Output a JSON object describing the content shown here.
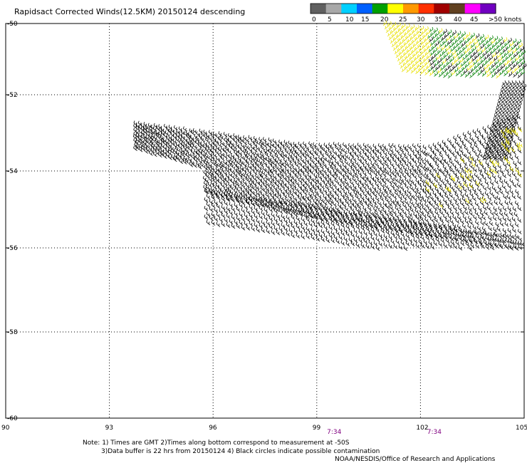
{
  "title": "Rapidsact Corrected Winds(12.5KM) 20150124 descending",
  "legend": {
    "labels": [
      "0",
      "5",
      "10",
      "15",
      "20",
      "25",
      "30",
      "35",
      "40",
      "45",
      ">50 knots"
    ],
    "colors": [
      "#606060",
      "#a8a8a8",
      "#00d0ff",
      "#0060ff",
      "#00a000",
      "#ffff00",
      "#ff9900",
      "#ff3000",
      "#a00000",
      "#604020",
      "#ff00ff",
      "#7000c0"
    ]
  },
  "axes": {
    "lon_ticks": [
      90,
      93,
      96,
      99,
      102,
      105
    ],
    "lon_labels": [
      "90",
      "93",
      "96",
      "99",
      "102",
      "105"
    ],
    "lat_ticks": [
      -50,
      -52,
      -54,
      -56,
      -58,
      -60
    ],
    "lat_labels": [
      "-50",
      "-52",
      "-54",
      "-56",
      "-58",
      "-60"
    ],
    "lon_range": [
      90,
      105
    ],
    "lat_range": [
      -50,
      -60
    ]
  },
  "times": [
    {
      "text": "7:34",
      "lon": 99.5
    },
    {
      "text": "7:34",
      "lon": 102.4
    }
  ],
  "notes": {
    "line1": "Note: 1) Times are GMT 2)Times along bottom correspond to measurement at -50S",
    "line2": "3)Data buffer is 22 hrs from 20150124 4) Black circles indicate possible contamination",
    "credit": "NOAA/NESDIS/Office of Research and Applications"
  }
}
